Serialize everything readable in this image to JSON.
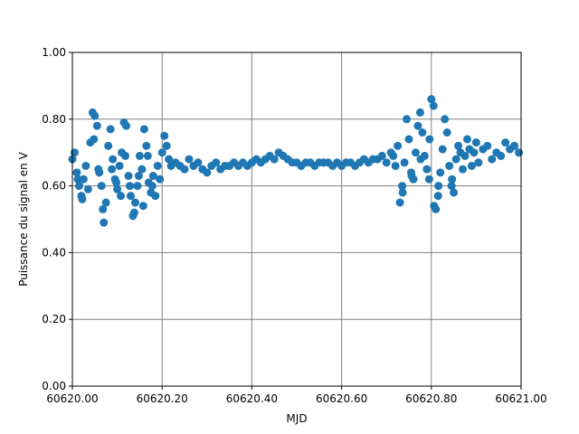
{
  "chart_data": {
    "type": "scatter",
    "xlabel": "MJD",
    "ylabel": "Puissance du signal en V",
    "color": "#1f77b4",
    "grid": true,
    "xlim": [
      60620,
      60621
    ],
    "ylim": [
      0,
      1
    ],
    "xticks": [
      {
        "value": 60620,
        "label": "60620.00"
      },
      {
        "value": 60620.2,
        "label": "60620.20"
      },
      {
        "value": 60620.4,
        "label": "60620.40"
      },
      {
        "value": 60620.6,
        "label": "60620.60"
      },
      {
        "value": 60620.8,
        "label": "60620.80"
      },
      {
        "value": 60621,
        "label": "60621.00"
      }
    ],
    "yticks": [
      {
        "value": 0,
        "label": "0.00"
      },
      {
        "value": 0.2,
        "label": "0.20"
      },
      {
        "value": 0.4,
        "label": "0.40"
      },
      {
        "value": 0.6,
        "label": "0.60"
      },
      {
        "value": 0.8,
        "label": "0.80"
      },
      {
        "value": 1,
        "label": "1.00"
      }
    ],
    "x": [
      60620,
      60620.005,
      60620.01,
      60620.015,
      60620.02,
      60620.025,
      60620.03,
      60620.035,
      60620.04,
      60620.045,
      60620.05,
      60620.055,
      60620.06,
      60620.065,
      60620.07,
      60620.075,
      60620.08,
      60620.085,
      60620.09,
      60620.095,
      60620.1,
      60620.105,
      60620.11,
      60620.115,
      60620.12,
      60620.125,
      60620.13,
      60620.135,
      60620.14,
      60620.145,
      60620.15,
      60620.155,
      60620.16,
      60620.165,
      60620.17,
      60620.175,
      60620.18,
      60620.185,
      60620.19,
      60620.195,
      60620.2,
      60620.205,
      60620.21,
      60620.215,
      60620.012,
      60620.022,
      60620.048,
      60620.058,
      60620.068,
      60620.088,
      60620.098,
      60620.108,
      60620.118,
      60620.128,
      60620.138,
      60620.148,
      60620.168,
      60620.178,
      60620.158,
      60620.22,
      60620.23,
      60620.24,
      60620.25,
      60620.26,
      60620.27,
      60620.28,
      60620.29,
      60620.3,
      60620.31,
      60620.32,
      60620.33,
      60620.34,
      60620.35,
      60620.36,
      60620.37,
      60620.38,
      60620.39,
      60620.4,
      60620.41,
      60620.42,
      60620.43,
      60620.44,
      60620.45,
      60620.46,
      60620.47,
      60620.48,
      60620.49,
      60620.5,
      60620.51,
      60620.52,
      60620.53,
      60620.54,
      60620.55,
      60620.56,
      60620.57,
      60620.58,
      60620.59,
      60620.6,
      60620.61,
      60620.62,
      60620.63,
      60620.64,
      60620.65,
      60620.66,
      60620.67,
      60620.68,
      60620.69,
      60620.7,
      60620.71,
      60620.715,
      60620.72,
      60620.725,
      60620.73,
      60620.735,
      60620.74,
      60620.745,
      60620.75,
      60620.755,
      60620.76,
      60620.765,
      60620.77,
      60620.775,
      60620.78,
      60620.785,
      60620.79,
      60620.795,
      60620.8,
      60620.805,
      60620.81,
      60620.815,
      60620.82,
      60620.825,
      60620.83,
      60620.835,
      60620.84,
      60620.845,
      60620.85,
      60620.855,
      60620.86,
      60620.865,
      60620.87,
      60620.875,
      60620.88,
      60620.885,
      60620.89,
      60620.895,
      60620.9,
      60620.736,
      60620.756,
      60620.806,
      60620.816,
      60620.846,
      60620.776,
      60620.796,
      60620.905,
      60620.915,
      60620.925,
      60620.935,
      60620.945,
      60620.955,
      60620.965,
      60620.975,
      60620.985,
      60620.995
    ],
    "y": [
      0.68,
      0.7,
      0.64,
      0.6,
      0.57,
      0.62,
      0.66,
      0.59,
      0.73,
      0.82,
      0.81,
      0.78,
      0.64,
      0.6,
      0.49,
      0.55,
      0.72,
      0.77,
      0.68,
      0.62,
      0.59,
      0.66,
      0.7,
      0.79,
      0.78,
      0.63,
      0.57,
      0.51,
      0.55,
      0.6,
      0.69,
      0.65,
      0.77,
      0.72,
      0.61,
      0.58,
      0.63,
      0.57,
      0.66,
      0.62,
      0.7,
      0.75,
      0.72,
      0.68,
      0.62,
      0.56,
      0.74,
      0.65,
      0.53,
      0.65,
      0.61,
      0.57,
      0.69,
      0.6,
      0.52,
      0.63,
      0.69,
      0.6,
      0.54,
      0.66,
      0.67,
      0.66,
      0.65,
      0.68,
      0.66,
      0.67,
      0.65,
      0.64,
      0.66,
      0.67,
      0.65,
      0.66,
      0.66,
      0.67,
      0.66,
      0.67,
      0.66,
      0.67,
      0.68,
      0.67,
      0.68,
      0.69,
      0.68,
      0.7,
      0.69,
      0.68,
      0.67,
      0.67,
      0.66,
      0.67,
      0.67,
      0.66,
      0.67,
      0.67,
      0.67,
      0.66,
      0.67,
      0.66,
      0.67,
      0.67,
      0.66,
      0.67,
      0.68,
      0.67,
      0.68,
      0.68,
      0.69,
      0.67,
      0.7,
      0.69,
      0.66,
      0.72,
      0.55,
      0.6,
      0.67,
      0.8,
      0.74,
      0.64,
      0.62,
      0.7,
      0.78,
      0.82,
      0.76,
      0.69,
      0.65,
      0.62,
      0.86,
      0.84,
      0.53,
      0.57,
      0.64,
      0.71,
      0.8,
      0.76,
      0.66,
      0.6,
      0.58,
      0.68,
      0.72,
      0.7,
      0.65,
      0.69,
      0.74,
      0.71,
      0.66,
      0.7,
      0.73,
      0.58,
      0.63,
      0.54,
      0.6,
      0.62,
      0.68,
      0.74,
      0.67,
      0.71,
      0.72,
      0.68,
      0.7,
      0.69,
      0.73,
      0.71,
      0.72,
      0.7
    ]
  }
}
